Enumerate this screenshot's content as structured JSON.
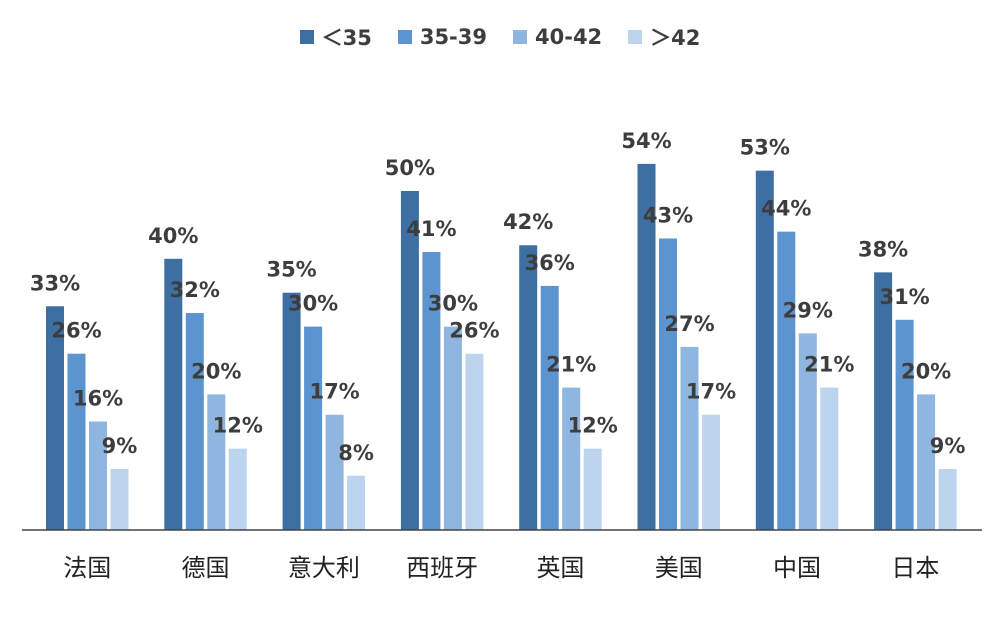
{
  "chart_data": {
    "type": "bar",
    "title": "",
    "xlabel": "",
    "ylabel": "",
    "ylim": [
      0,
      60
    ],
    "grid": false,
    "legend_position": "top-center",
    "categories": [
      "法国",
      "德国",
      "意大利",
      "西班牙",
      "英国",
      "美国",
      "中国",
      "日本"
    ],
    "series": [
      {
        "name": "＜35",
        "color": "#3d6fa3",
        "values": [
          33,
          40,
          35,
          50,
          42,
          54,
          53,
          38
        ],
        "labels": [
          "33%",
          "40%",
          "35%",
          "50%",
          "42%",
          "54%",
          "53%",
          "38%"
        ]
      },
      {
        "name": "35-39",
        "color": "#5b94cf",
        "values": [
          26,
          32,
          30,
          41,
          36,
          43,
          44,
          31
        ],
        "labels": [
          "26%",
          "32%",
          "30%",
          "41%",
          "36%",
          "43%",
          "44%",
          "31%"
        ]
      },
      {
        "name": "40-42",
        "color": "#8fb6e1",
        "values": [
          16,
          20,
          17,
          30,
          21,
          27,
          29,
          20
        ],
        "labels": [
          "16%",
          "20%",
          "17%",
          "30%",
          "21%",
          "27%",
          "29%",
          "20%"
        ]
      },
      {
        "name": "＞42",
        "color": "#bcd4ee",
        "values": [
          9,
          12,
          8,
          26,
          12,
          17,
          21,
          9
        ],
        "labels": [
          "9%",
          "12%",
          "8%",
          "26%",
          "12%",
          "17%",
          "21%",
          "9%"
        ]
      }
    ]
  }
}
